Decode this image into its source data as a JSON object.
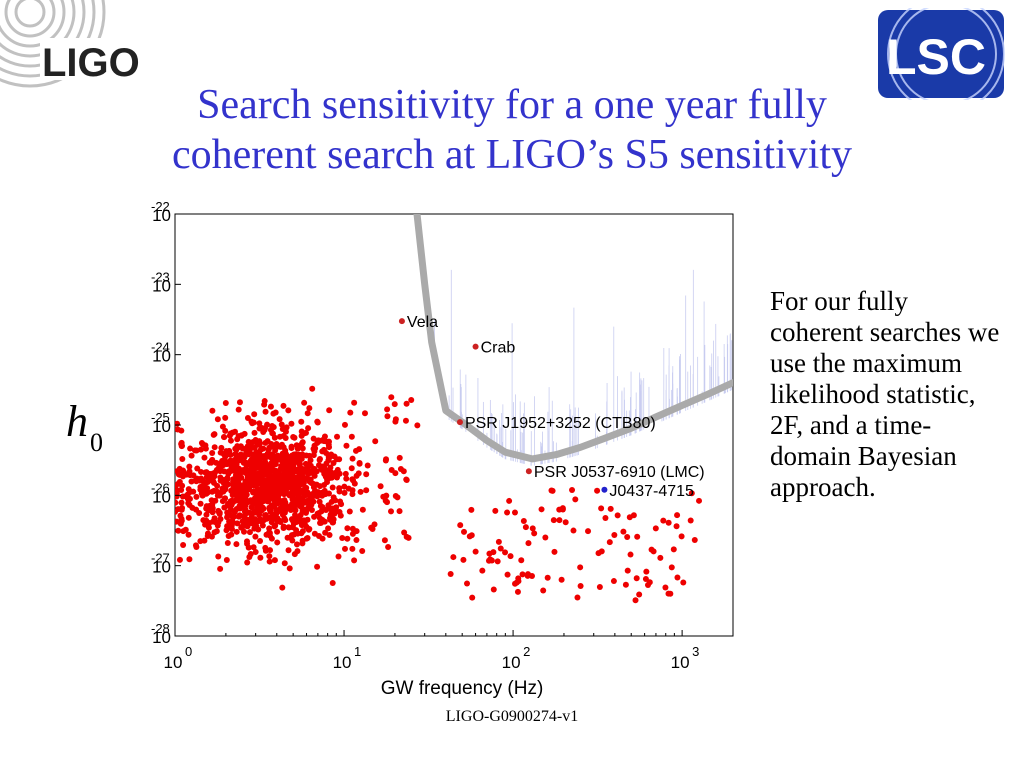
{
  "slide": {
    "title_line1": "Search sensitivity for a one year fully",
    "title_line2": "coherent search at LIGO’s S5 sensitivity",
    "side_text": "For our fully coherent searches we use the maximum likelihood statistic, 2F, and a time-domain Bayesian approach.",
    "footer": "LIGO-G0900274-v1",
    "logo_left": "LIGO",
    "logo_right": "LSC",
    "colors": {
      "title": "#3333cc",
      "points": "#ee0000",
      "curve": "#aaaaaa",
      "lsc_bg": "#1a3aa8"
    }
  },
  "chart_data": {
    "type": "scatter",
    "xlabel": "GW frequency (Hz)",
    "ylabel": "h",
    "ylabel_subscript": "0",
    "x_scale": "log",
    "y_scale": "log",
    "xlim": [
      1,
      2000
    ],
    "ylim": [
      1e-28,
      1e-22
    ],
    "x_ticks": [
      {
        "base": "10",
        "exp": "0"
      },
      {
        "base": "10",
        "exp": "1"
      },
      {
        "base": "10",
        "exp": "2"
      },
      {
        "base": "10",
        "exp": "3"
      }
    ],
    "y_ticks": [
      {
        "base": "10",
        "exp": "-22"
      },
      {
        "base": "10",
        "exp": "-23"
      },
      {
        "base": "10",
        "exp": "-24"
      },
      {
        "base": "10",
        "exp": "-25"
      },
      {
        "base": "10",
        "exp": "-26"
      },
      {
        "base": "10",
        "exp": "-27"
      },
      {
        "base": "10",
        "exp": "-28"
      }
    ],
    "grid": false,
    "sensitivity_curve": {
      "x": [
        27,
        30,
        33,
        40,
        50,
        70,
        90,
        130,
        180,
        250,
        350,
        500,
        700,
        1000,
        1400,
        2000
      ],
      "y": [
        1e-22,
        1e-23,
        1.5e-24,
        1.6e-25,
        1.1e-25,
        6e-26,
        4.1e-26,
        3.3e-26,
        3.8e-26,
        4.8e-26,
        6.5e-26,
        9e-26,
        1.3e-25,
        1.9e-25,
        2.7e-25,
        4e-25
      ]
    },
    "labeled_pulsars": [
      {
        "name": "Vela",
        "x": 22,
        "y": 3e-24,
        "color": "#cc2222"
      },
      {
        "name": "Crab",
        "x": 60,
        "y": 1.3e-24,
        "color": "#cc2222"
      },
      {
        "name": "PSR J1952+3252 (CTB80)",
        "x": 48.5,
        "y": 1.1e-25,
        "color": "#cc2222"
      },
      {
        "name": "PSR J0537-6910 (LMC)",
        "x": 124,
        "y": 2.2e-26,
        "color": "#cc2222"
      },
      {
        "name": "J0437-4715",
        "x": 347,
        "y": 1.2e-26,
        "color": "#2222cc"
      }
    ],
    "population": {
      "description_count": 1400,
      "low_freq_cluster": {
        "log_x_mean": 0.52,
        "log_x_sd": 0.24,
        "log_y_mean": -25.85,
        "log_y_sd": 0.42
      },
      "high_freq_cluster": {
        "log_x_min": 1.6,
        "log_x_max": 3.1,
        "log_y_min": -27.5,
        "log_y_max": -25.9
      }
    }
  }
}
